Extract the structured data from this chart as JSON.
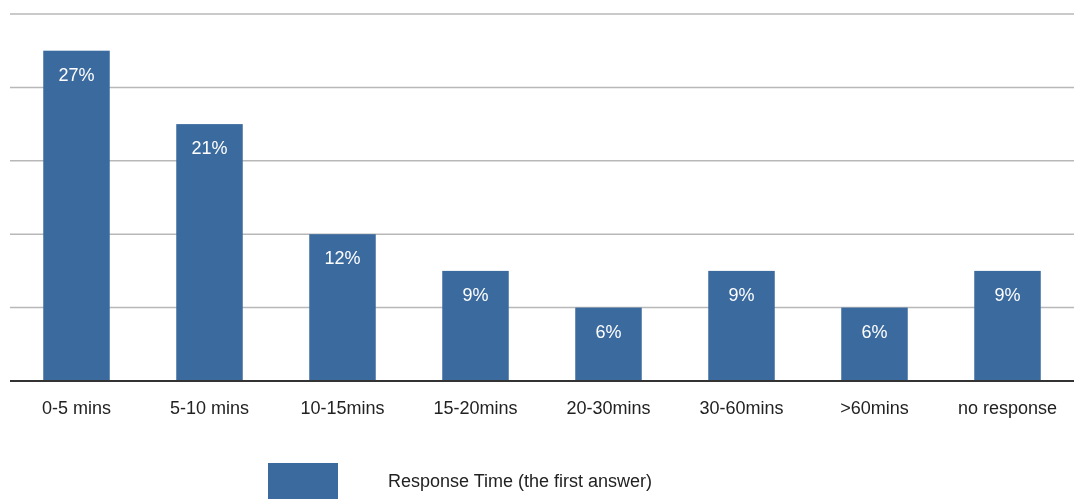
{
  "chart_data": {
    "type": "bar",
    "categories": [
      "0-5 mins",
      "5-10 mins",
      "10-15mins",
      "15-20mins",
      "20-30mins",
      "30-60mins",
      ">60mins",
      "no response"
    ],
    "series": [
      {
        "name": "Response Time (the first answer)",
        "color": "#3b6a9e",
        "values": [
          27,
          21,
          12,
          9,
          6,
          9,
          6,
          9
        ],
        "value_labels": [
          "27%",
          "21%",
          "12%",
          "9%",
          "6%",
          "9%",
          "6%",
          "9%"
        ]
      }
    ],
    "ylim": [
      0,
      30
    ],
    "yticks": [
      {
        "value": 0,
        "label": null
      },
      {
        "value": 6,
        "label": null
      },
      {
        "value": 12,
        "label": null
      },
      {
        "value": 18,
        "label": null
      },
      {
        "value": 24,
        "label": null
      },
      {
        "value": 30,
        "label": null
      }
    ],
    "grid": "y",
    "legend": "bottom",
    "tick_labels": "x"
  }
}
